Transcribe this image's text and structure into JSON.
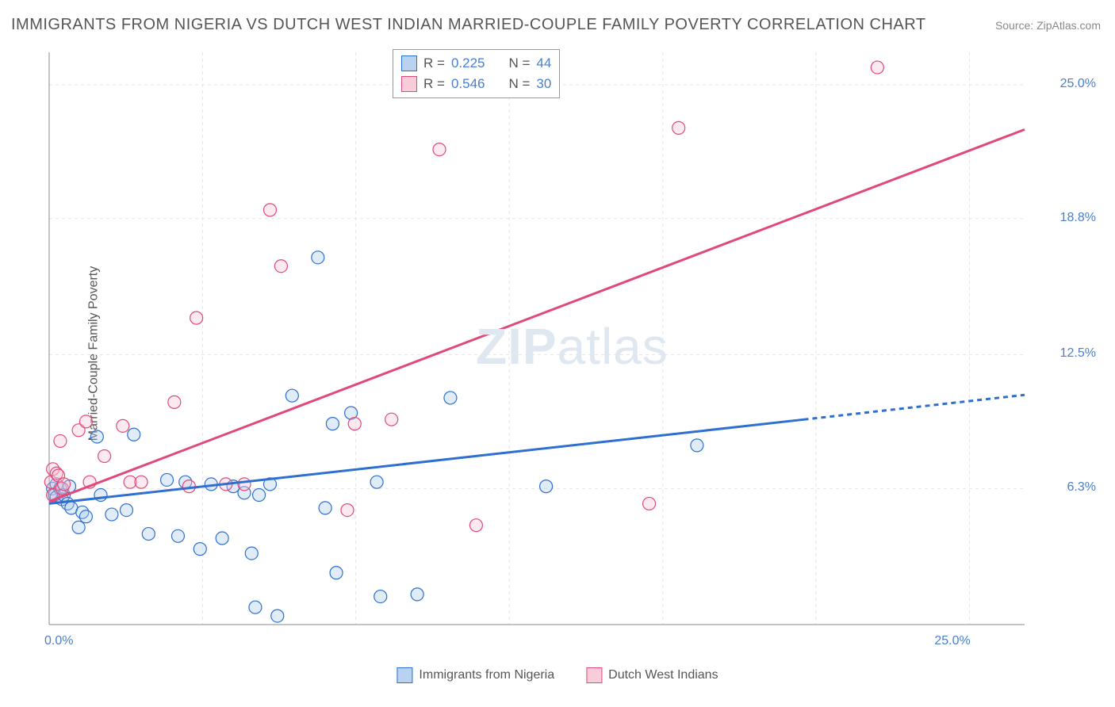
{
  "title": "IMMIGRANTS FROM NIGERIA VS DUTCH WEST INDIAN MARRIED-COUPLE FAMILY POVERTY CORRELATION CHART",
  "source": "Source: ZipAtlas.com",
  "yaxis_title": "Married-Couple Family Poverty",
  "watermark_zip": "ZIP",
  "watermark_atlas": "atlas",
  "chart": {
    "type": "scatter-correlation",
    "background_color": "#ffffff",
    "grid_color": "#e5e5e5",
    "grid_dash": "4,4",
    "axis_line_color": "#888888",
    "xlim": [
      0,
      26.5
    ],
    "ylim": [
      0,
      26.5
    ],
    "x_ticks": [
      0,
      25
    ],
    "x_tick_labels": [
      "0.0%",
      "25.0%"
    ],
    "y_ticks": [
      6.3,
      12.5,
      18.8,
      25.0
    ],
    "y_tick_labels": [
      "6.3%",
      "12.5%",
      "18.8%",
      "25.0%"
    ],
    "x_gridlines": [
      4.17,
      8.33,
      12.5,
      16.67,
      20.83,
      25.0
    ],
    "marker_radius": 8,
    "marker_fill_opacity": 0.35,
    "marker_stroke_width": 1.2,
    "series": [
      {
        "name": "Immigrants from Nigeria",
        "color_stroke": "#2f6fd0",
        "color_fill": "#a9c8ef",
        "legend_swatch_fill": "#b9d2f0",
        "legend_swatch_border": "#2f6fd0",
        "R": "0.225",
        "N": "44",
        "trend": {
          "intercept": 5.6,
          "slope": 0.19,
          "x_solid_end": 20.5,
          "x_end": 26.5,
          "dash": "6,5",
          "width": 3
        },
        "points": [
          [
            0.1,
            6.3
          ],
          [
            0.15,
            6.0
          ],
          [
            0.2,
            6.5
          ],
          [
            0.2,
            5.9
          ],
          [
            0.3,
            6.3
          ],
          [
            0.35,
            5.8
          ],
          [
            0.4,
            6.0
          ],
          [
            0.5,
            5.6
          ],
          [
            0.55,
            6.4
          ],
          [
            0.6,
            5.4
          ],
          [
            0.8,
            4.5
          ],
          [
            0.9,
            5.2
          ],
          [
            1.0,
            5.0
          ],
          [
            1.3,
            8.7
          ],
          [
            1.4,
            6.0
          ],
          [
            1.7,
            5.1
          ],
          [
            2.1,
            5.3
          ],
          [
            2.3,
            8.8
          ],
          [
            2.7,
            4.2
          ],
          [
            3.2,
            6.7
          ],
          [
            3.5,
            4.1
          ],
          [
            3.7,
            6.6
          ],
          [
            4.1,
            3.5
          ],
          [
            4.4,
            6.5
          ],
          [
            4.7,
            4.0
          ],
          [
            5.0,
            6.4
          ],
          [
            5.3,
            6.1
          ],
          [
            5.5,
            3.3
          ],
          [
            5.6,
            0.8
          ],
          [
            5.7,
            6.0
          ],
          [
            6.0,
            6.5
          ],
          [
            6.2,
            0.4
          ],
          [
            6.6,
            10.6
          ],
          [
            7.3,
            17.0
          ],
          [
            7.5,
            5.4
          ],
          [
            7.7,
            9.3
          ],
          [
            7.8,
            2.4
          ],
          [
            8.2,
            9.8
          ],
          [
            8.9,
            6.6
          ],
          [
            9.0,
            1.3
          ],
          [
            10.0,
            1.4
          ],
          [
            10.9,
            10.5
          ],
          [
            13.5,
            6.4
          ],
          [
            17.6,
            8.3
          ]
        ]
      },
      {
        "name": "Dutch West Indians",
        "color_stroke": "#e04a7a",
        "color_fill": "#f6c4d4",
        "legend_swatch_fill": "#f6cdd9",
        "legend_swatch_border": "#e04a7a",
        "R": "0.546",
        "N": "30",
        "trend": {
          "intercept": 5.7,
          "slope": 0.65,
          "x_solid_end": 26.5,
          "x_end": 26.5,
          "dash": "",
          "width": 3
        },
        "points": [
          [
            0.05,
            6.6
          ],
          [
            0.1,
            7.2
          ],
          [
            0.1,
            6.0
          ],
          [
            0.2,
            7.0
          ],
          [
            0.25,
            6.9
          ],
          [
            0.3,
            8.5
          ],
          [
            0.35,
            6.3
          ],
          [
            0.4,
            6.5
          ],
          [
            0.8,
            9.0
          ],
          [
            1.0,
            9.4
          ],
          [
            1.1,
            6.6
          ],
          [
            1.5,
            7.8
          ],
          [
            2.0,
            9.2
          ],
          [
            2.2,
            6.6
          ],
          [
            2.5,
            6.6
          ],
          [
            3.4,
            10.3
          ],
          [
            3.8,
            6.4
          ],
          [
            4.0,
            14.2
          ],
          [
            4.8,
            6.5
          ],
          [
            5.3,
            6.5
          ],
          [
            6.0,
            19.2
          ],
          [
            6.3,
            16.6
          ],
          [
            8.1,
            5.3
          ],
          [
            8.3,
            9.3
          ],
          [
            9.3,
            9.5
          ],
          [
            10.6,
            22.0
          ],
          [
            11.6,
            4.6
          ],
          [
            16.3,
            5.6
          ],
          [
            17.1,
            23.0
          ],
          [
            22.5,
            25.8
          ]
        ]
      }
    ]
  },
  "legend_box": {
    "R_label": "R =",
    "N_label": "N ="
  },
  "text_color": "#555555",
  "value_color": "#4a7ec9"
}
